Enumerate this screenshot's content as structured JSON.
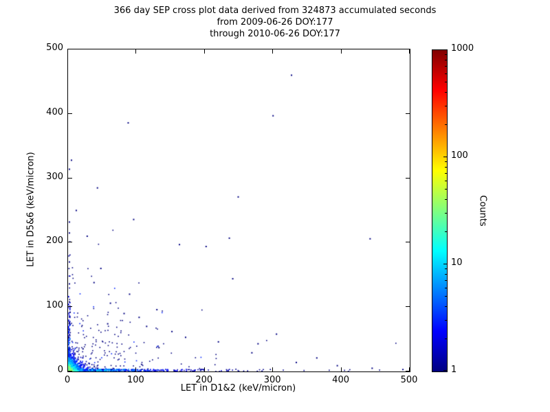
{
  "title": {
    "line1": "366 day SEP cross plot data derived from 324873 accumulated seconds",
    "line2": "from 2009-06-26 DOY:177",
    "line3": "through 2010-06-26 DOY:177"
  },
  "chart_data": {
    "type": "scatter",
    "title_lines": [
      "366 day SEP cross plot data derived from 324873 accumulated seconds",
      "from 2009-06-26 DOY:177",
      "through 2010-06-26 DOY:177"
    ],
    "xlabel": "LET in D1&2 (keV/micron)",
    "ylabel": "LET in D5&6 (keV/micron)",
    "xlim": [
      0,
      500
    ],
    "ylim": [
      0,
      500
    ],
    "xticks": [
      0,
      100,
      200,
      300,
      400,
      500
    ],
    "yticks": [
      0,
      100,
      200,
      300,
      400,
      500
    ],
    "grid": false,
    "colorbar": {
      "label": "Counts",
      "scale": "log",
      "range": [
        1,
        1000
      ],
      "ticks": [
        1,
        10,
        100,
        1000
      ],
      "colormap": "jet",
      "gradient": [
        {
          "t": 0.0,
          "rgb": [
            0,
            0,
            128
          ]
        },
        {
          "t": 0.125,
          "rgb": [
            0,
            0,
            255
          ]
        },
        {
          "t": 0.375,
          "rgb": [
            0,
            255,
            255
          ]
        },
        {
          "t": 0.625,
          "rgb": [
            255,
            255,
            0
          ]
        },
        {
          "t": 0.875,
          "rgb": [
            255,
            0,
            0
          ]
        },
        {
          "t": 1.0,
          "rgb": [
            128,
            0,
            0
          ]
        }
      ]
    },
    "seed": 20090626,
    "outlier_points": [
      [
        327,
        460
      ],
      [
        300,
        397
      ],
      [
        88,
        386
      ],
      [
        5,
        328
      ],
      [
        2,
        314
      ],
      [
        43,
        285
      ],
      [
        249,
        271
      ],
      [
        96,
        236
      ],
      [
        2,
        232
      ],
      [
        2,
        215
      ],
      [
        442,
        206
      ],
      [
        236,
        207
      ],
      [
        163,
        197
      ],
      [
        202,
        194
      ],
      [
        2,
        170
      ],
      [
        241,
        144
      ],
      [
        38,
        138
      ],
      [
        2,
        136
      ],
      [
        62,
        106
      ],
      [
        130,
        96
      ],
      [
        82,
        90
      ],
      [
        104,
        84
      ],
      [
        58,
        74
      ],
      [
        305,
        58
      ],
      [
        172,
        53
      ],
      [
        220,
        46
      ],
      [
        278,
        43
      ],
      [
        133,
        37
      ],
      [
        269,
        29
      ],
      [
        364,
        21
      ],
      [
        334,
        14
      ],
      [
        394,
        9
      ],
      [
        445,
        5
      ],
      [
        490,
        3
      ],
      [
        2,
        108
      ],
      [
        3,
        92
      ],
      [
        2,
        75
      ],
      [
        152,
        62
      ],
      [
        115,
        70
      ],
      [
        90,
        120
      ],
      [
        48,
        160
      ],
      [
        28,
        210
      ],
      [
        12,
        250
      ]
    ],
    "dense_cluster": {
      "count": 1500,
      "x_scale": 6,
      "y_scale": 6,
      "peak_count": 90
    },
    "x_axis_strip": {
      "count": 650,
      "x_scale": 65,
      "y_max": 3.5,
      "count_scale": 25
    },
    "y_axis_strip": {
      "count": 170,
      "y_scale": 42,
      "x_max": 3,
      "count_scale": 12
    },
    "mid_scatter": {
      "count": 230,
      "x_scale": 50,
      "y_scale": 34
    }
  }
}
